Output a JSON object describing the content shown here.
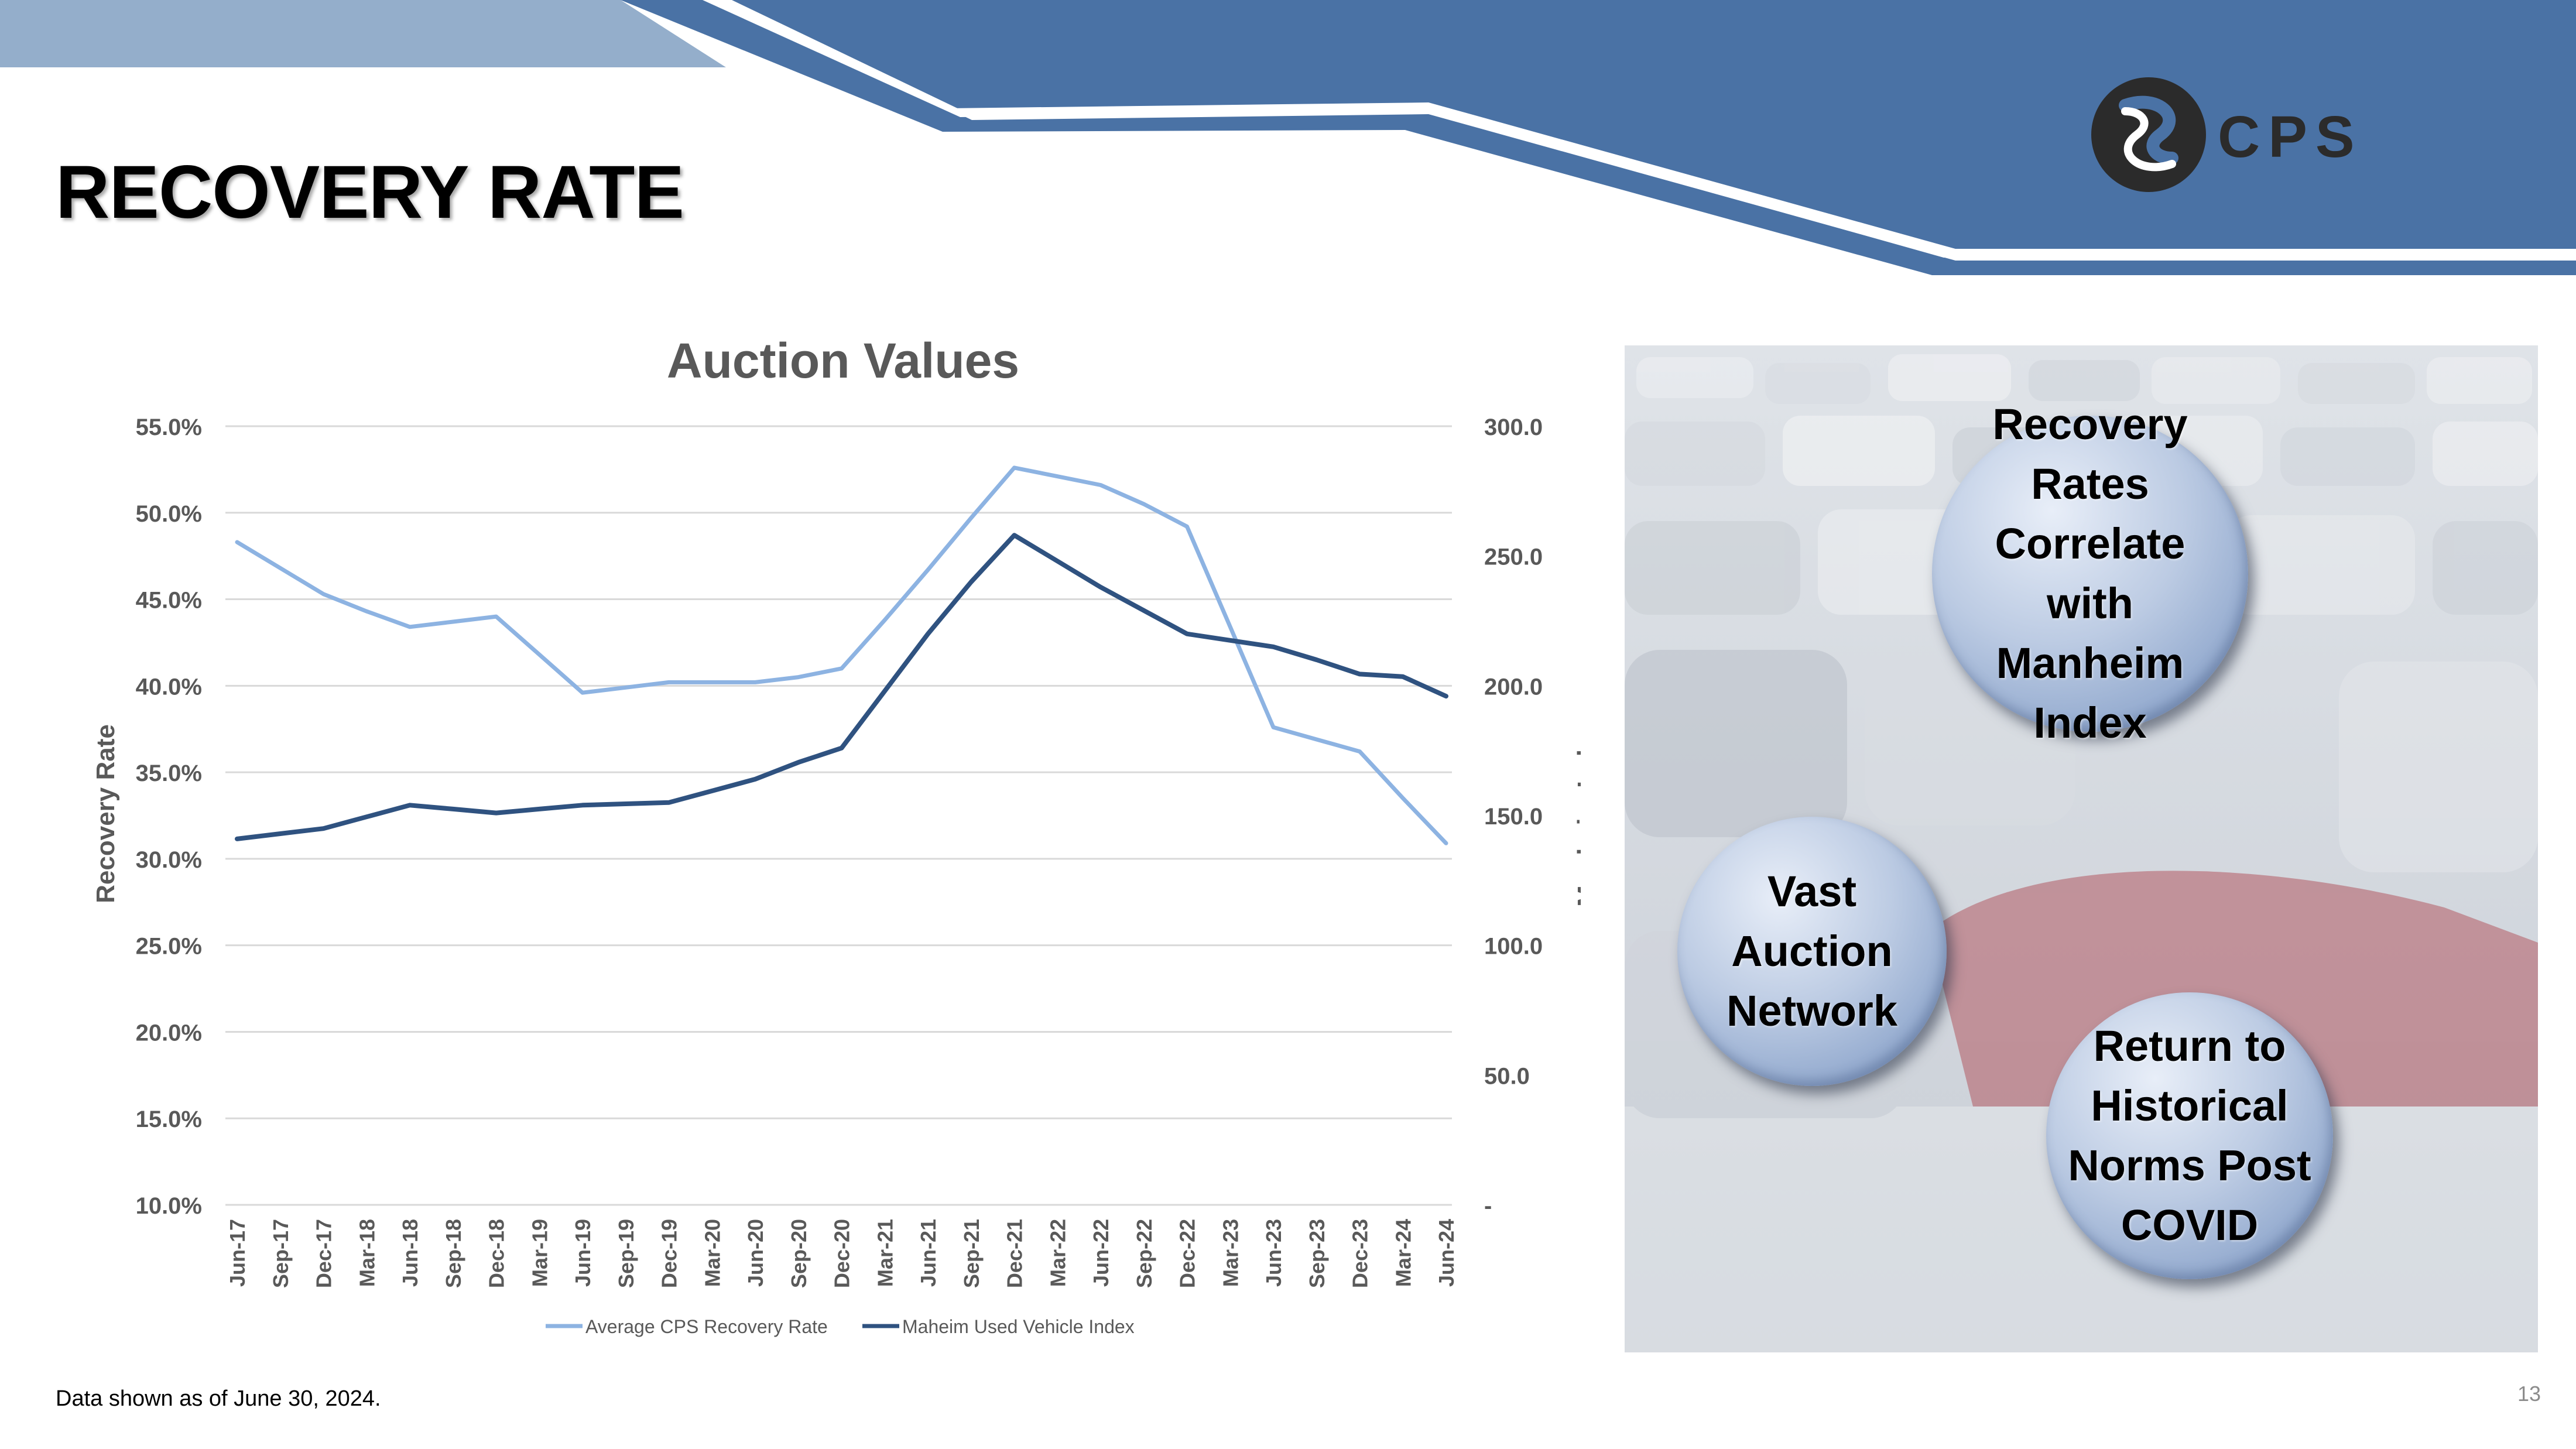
{
  "page": {
    "title": "RECOVERY RATE",
    "footnote": "Data shown as of June 30, 2024.",
    "page_number": "13"
  },
  "logo": {
    "text": "CPS"
  },
  "colors": {
    "banner_dark": "#4a72a5",
    "banner_light": "#94aecb",
    "recovery_line": "#8db3e2",
    "manheim_line": "#2f5280",
    "bubble": "#a9bbd9"
  },
  "bubbles": [
    {
      "text": "Recovery\nRates\nCorrelate\nwith\nManheim\nIndex"
    },
    {
      "text": "Vast\nAuction\nNetwork"
    },
    {
      "text": "Return to\nHistorical\nNorms Post\nCOVID"
    }
  ],
  "chart_data": {
    "type": "line",
    "title": "Auction Values",
    "ylabel": "Recovery Rate",
    "y2label": "Manheim Index",
    "ylim": [
      0.1,
      0.55
    ],
    "y2lim": [
      0,
      300
    ],
    "y_ticks": [
      "10.0%",
      "15.0%",
      "20.0%",
      "25.0%",
      "30.0%",
      "35.0%",
      "40.0%",
      "45.0%",
      "50.0%",
      "55.0%"
    ],
    "y2_ticks": [
      "-",
      "50.0",
      "100.0",
      "150.0",
      "200.0",
      "250.0",
      "300.0"
    ],
    "grid": true,
    "legend_position": "bottom",
    "categories": [
      "Jun-17",
      "Sep-17",
      "Dec-17",
      "Mar-18",
      "Jun-18",
      "Sep-18",
      "Dec-18",
      "Mar-19",
      "Jun-19",
      "Sep-19",
      "Dec-19",
      "Mar-20",
      "Jun-20",
      "Sep-20",
      "Dec-20",
      "Mar-21",
      "Jun-21",
      "Sep-21",
      "Dec-21",
      "Mar-22",
      "Jun-22",
      "Sep-22",
      "Dec-22",
      "Mar-23",
      "Jun-23",
      "Sep-23",
      "Dec-23",
      "Mar-24",
      "Jun-24"
    ],
    "series": [
      {
        "name": "Average CPS Recovery Rate",
        "axis": "left",
        "color": "#8db3e2",
        "values": [
          0.483,
          0.468,
          0.453,
          0.443,
          0.434,
          0.437,
          0.44,
          0.418,
          0.396,
          0.399,
          0.402,
          0.402,
          0.402,
          0.405,
          0.41,
          0.438,
          0.467,
          0.497,
          0.526,
          0.521,
          0.516,
          0.505,
          0.492,
          0.434,
          0.376,
          0.369,
          0.362,
          0.335,
          0.309
        ]
      },
      {
        "name": "Maheim Used Vehicle Index",
        "axis": "right",
        "color": "#2f5280",
        "values": [
          141.0,
          143.0,
          145.0,
          149.5,
          154.0,
          152.5,
          151.0,
          152.5,
          154.0,
          154.5,
          155.0,
          159.5,
          164.0,
          170.5,
          176.0,
          198.0,
          220.0,
          240.0,
          258.0,
          248.0,
          238.0,
          229.0,
          220.0,
          217.5,
          215.0,
          210.0,
          204.5,
          203.5,
          196.0
        ]
      }
    ]
  }
}
